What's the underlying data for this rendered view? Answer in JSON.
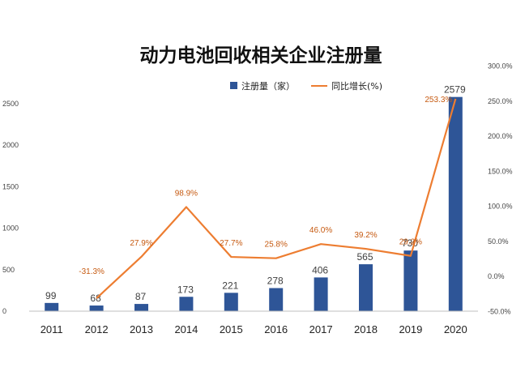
{
  "chart_data": {
    "type": "bar",
    "title": "动力电池回收相关企业注册量",
    "categories": [
      "2011",
      "2012",
      "2013",
      "2014",
      "2015",
      "2016",
      "2017",
      "2018",
      "2019",
      "2020"
    ],
    "series": [
      {
        "name": "注册量（家）",
        "type": "bar",
        "axis": "left",
        "color": "#2E5597",
        "values": [
          99,
          68,
          87,
          173,
          221,
          278,
          406,
          565,
          730,
          2579
        ],
        "labels": [
          "99",
          "68",
          "87",
          "173",
          "221",
          "278",
          "406",
          "565",
          "730",
          "2579"
        ]
      },
      {
        "name": "同比增长(%)",
        "type": "line",
        "axis": "right",
        "color": "#ED7D31",
        "values": [
          null,
          -31.3,
          27.9,
          98.9,
          27.7,
          25.8,
          46.0,
          39.2,
          29.2,
          253.3
        ],
        "labels": [
          "",
          "-31.3%",
          "27.9%",
          "98.9%",
          "27.7%",
          "25.8%",
          "46.0%",
          "39.2%",
          "29.2%",
          "253.3%"
        ]
      }
    ],
    "y_left": {
      "min": 0,
      "max": 2800,
      "ticks": [
        0,
        500,
        1000,
        1500,
        2000,
        2500
      ],
      "tick_labels": [
        "0",
        "500",
        "1000",
        "1500",
        "2000",
        "2500"
      ]
    },
    "y_right": {
      "min": -50,
      "max": 300,
      "ticks": [
        -50,
        0,
        50,
        100,
        150,
        200,
        250,
        300
      ],
      "tick_labels": [
        "-50.0%",
        "0.0%",
        "50.0%",
        "100.0%",
        "150.0%",
        "200.0%",
        "250.0%",
        "300.0%"
      ]
    },
    "grid": false,
    "legend": "top-right"
  }
}
